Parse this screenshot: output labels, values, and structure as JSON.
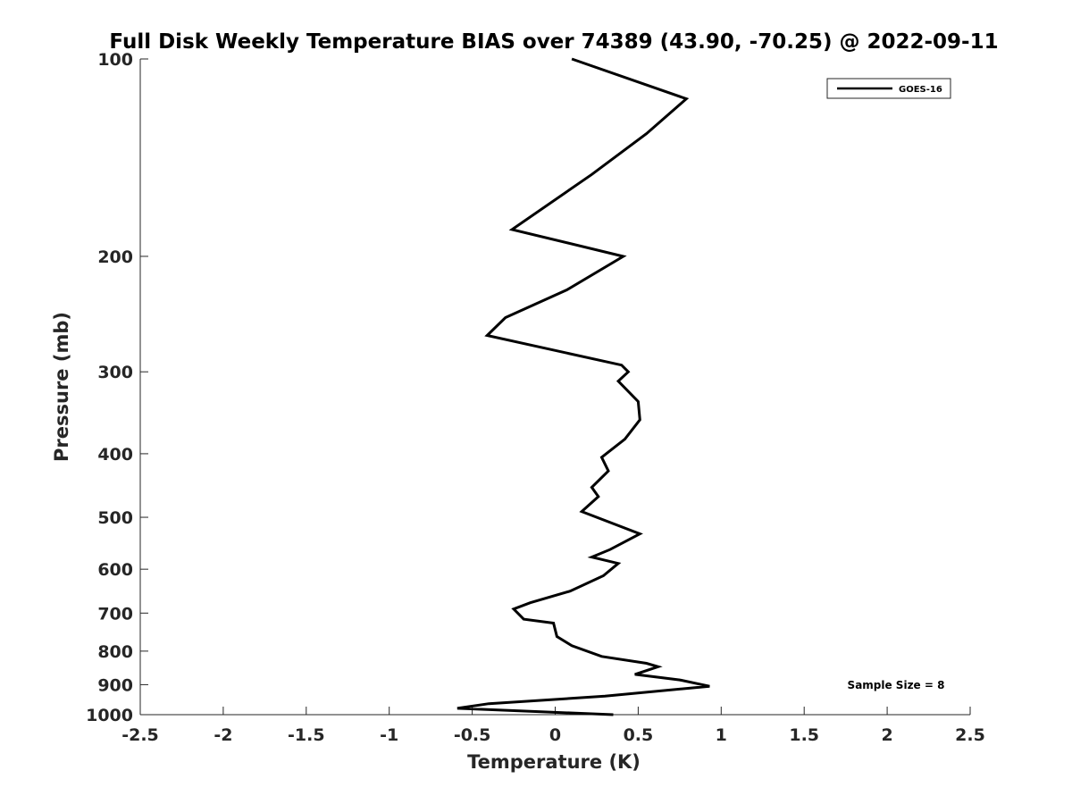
{
  "chart_data": {
    "type": "line",
    "title": "Full Disk Weekly Temperature BIAS over 74389 (43.90, -70.25) @ 2022-09-11",
    "xlabel": "Temperature (K)",
    "ylabel": "Pressure (mb)",
    "xlim": [
      -2.5,
      2.5
    ],
    "ylim": [
      100,
      1000
    ],
    "y_scale": "log",
    "y_reversed": true,
    "grid": false,
    "x_ticks": [
      -2.5,
      -2,
      -1.5,
      -1,
      -0.5,
      0,
      0.5,
      1,
      1.5,
      2,
      2.5
    ],
    "x_tick_labels": [
      "-2.5",
      "-2",
      "-1.5",
      "-1",
      "-0.5",
      "0",
      "0.5",
      "1",
      "1.5",
      "2",
      "2.5"
    ],
    "y_ticks": [
      100,
      200,
      300,
      400,
      500,
      600,
      700,
      800,
      900,
      1000
    ],
    "y_tick_labels": [
      "100",
      "200",
      "300",
      "400",
      "500",
      "600",
      "700",
      "800",
      "900",
      "1000"
    ],
    "legend_position": "top-right",
    "annotation": "Sample Size = 8",
    "series": [
      {
        "name": "GOES-16",
        "color": "#000000",
        "x": [
          0.1,
          0.79,
          0.55,
          0.22,
          -0.26,
          0.41,
          0.07,
          -0.3,
          -0.41,
          0.4,
          0.44,
          0.38,
          0.5,
          0.51,
          0.42,
          0.28,
          0.32,
          0.22,
          0.26,
          0.16,
          0.51,
          0.33,
          0.22,
          0.38,
          0.29,
          0.09,
          -0.15,
          -0.25,
          -0.19,
          -0.01,
          0.01,
          0.1,
          0.28,
          0.55,
          0.62,
          0.48,
          0.75,
          0.93,
          0.3,
          -0.4,
          -0.59,
          0.35
        ],
        "y": [
          100,
          115,
          130,
          150,
          182,
          200,
          225,
          248,
          264,
          293,
          300,
          310,
          333,
          355,
          380,
          405,
          425,
          450,
          465,
          490,
          530,
          560,
          575,
          588,
          614,
          648,
          675,
          690,
          715,
          725,
          760,
          785,
          815,
          835,
          845,
          868,
          885,
          905,
          937,
          962,
          978,
          1000
        ]
      }
    ]
  }
}
